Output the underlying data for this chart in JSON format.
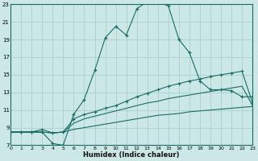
{
  "xlabel": "Humidex (Indice chaleur)",
  "xlim": [
    0,
    23
  ],
  "ylim": [
    7,
    23
  ],
  "yticks": [
    7,
    9,
    11,
    13,
    15,
    17,
    19,
    21,
    23
  ],
  "xticks": [
    0,
    1,
    2,
    3,
    4,
    5,
    6,
    7,
    8,
    9,
    10,
    11,
    12,
    13,
    14,
    15,
    16,
    17,
    18,
    19,
    20,
    21,
    22,
    23
  ],
  "bg_color": "#cce8e6",
  "line_color": "#1a6b65",
  "grid_color": "#aacfcc",
  "curve_main_x": [
    0,
    1,
    2,
    3,
    4,
    5,
    6,
    7,
    8,
    9,
    10,
    11,
    12,
    13,
    14,
    15,
    16,
    17,
    18,
    19,
    20,
    21,
    22,
    23
  ],
  "curve_main_y": [
    8.5,
    8.5,
    8.5,
    8.5,
    7.2,
    7.0,
    10.5,
    12.2,
    15.5,
    19.2,
    20.5,
    19.5,
    22.5,
    23.3,
    23.3,
    22.8,
    19.0,
    17.5,
    14.3,
    13.3,
    13.3,
    13.2,
    12.5,
    12.5
  ],
  "curve2_x": [
    0,
    1,
    2,
    3,
    4,
    5,
    6,
    7,
    8,
    9,
    10,
    11,
    12,
    13,
    14,
    15,
    16,
    17,
    18,
    19,
    20,
    21,
    22,
    23
  ],
  "curve2_y": [
    8.5,
    8.5,
    8.5,
    8.8,
    8.4,
    8.5,
    10.0,
    10.5,
    10.8,
    11.2,
    11.5,
    12.0,
    12.5,
    12.9,
    13.3,
    13.7,
    14.0,
    14.3,
    14.5,
    14.8,
    15.0,
    15.2,
    15.4,
    11.8
  ],
  "curve3_x": [
    0,
    1,
    2,
    3,
    4,
    5,
    6,
    7,
    8,
    9,
    10,
    11,
    12,
    13,
    14,
    15,
    16,
    17,
    18,
    19,
    20,
    21,
    22,
    23
  ],
  "curve3_y": [
    8.5,
    8.5,
    8.5,
    8.5,
    8.4,
    8.5,
    9.5,
    10.0,
    10.3,
    10.6,
    10.9,
    11.2,
    11.5,
    11.8,
    12.0,
    12.3,
    12.5,
    12.7,
    12.9,
    13.1,
    13.3,
    13.5,
    13.7,
    11.5
  ],
  "curve4_x": [
    0,
    1,
    2,
    3,
    4,
    5,
    6,
    7,
    8,
    9,
    10,
    11,
    12,
    13,
    14,
    15,
    16,
    17,
    18,
    19,
    20,
    21,
    22,
    23
  ],
  "curve4_y": [
    8.5,
    8.5,
    8.5,
    8.5,
    8.4,
    8.5,
    8.8,
    9.0,
    9.2,
    9.4,
    9.6,
    9.8,
    10.0,
    10.2,
    10.4,
    10.5,
    10.6,
    10.8,
    10.9,
    11.0,
    11.1,
    11.2,
    11.3,
    11.4
  ]
}
